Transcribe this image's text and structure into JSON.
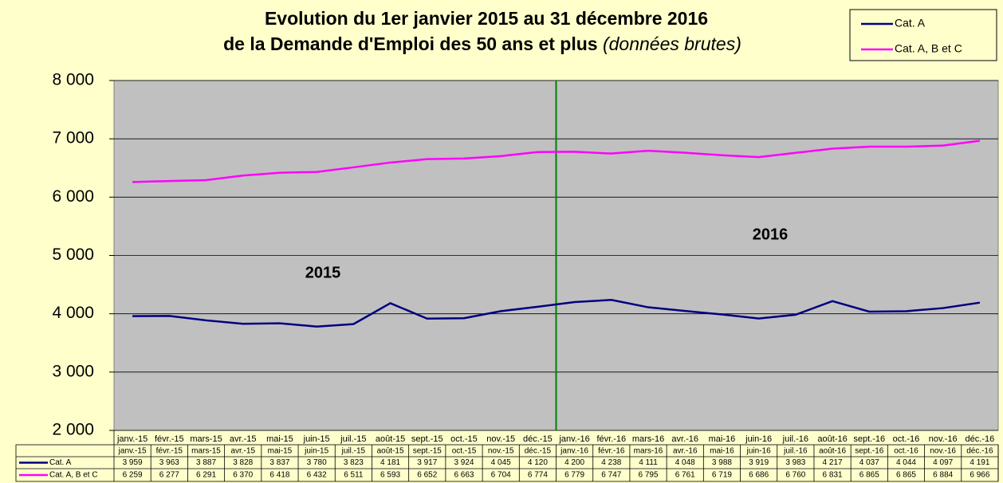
{
  "chart_data": {
    "type": "line",
    "title": [
      "Evolution  du 1er janvier 2015 au 31 décembre 2016",
      "de la Demande d'Emploi des 50 ans et plus"
    ],
    "subtitle": "(données brutes)",
    "annotations": [
      "2015",
      "2016"
    ],
    "categories": [
      "janv.-15",
      "févr.-15",
      "mars-15",
      "avr.-15",
      "mai-15",
      "juin-15",
      "juil.-15",
      "août-15",
      "sept.-15",
      "oct.-15",
      "nov.-15",
      "déc.-15",
      "janv.-16",
      "févr.-16",
      "mars-16",
      "avr.-16",
      "mai-16",
      "juin-16",
      "juil.-16",
      "août-16",
      "sept.-16",
      "oct.-16",
      "nov.-16",
      "déc.-16"
    ],
    "series": [
      {
        "name": "Cat. A",
        "color": "#000080",
        "values": [
          3959,
          3963,
          3887,
          3828,
          3837,
          3780,
          3823,
          4181,
          3917,
          3924,
          4045,
          4120,
          4200,
          4238,
          4111,
          4048,
          3988,
          3919,
          3983,
          4217,
          4037,
          4044,
          4097,
          4191
        ],
        "value_labels": [
          "3 959",
          "3 963",
          "3 887",
          "3 828",
          "3 837",
          "3 780",
          "3 823",
          "4 181",
          "3 917",
          "3 924",
          "4 045",
          "4 120",
          "4 200",
          "4 238",
          "4 111",
          "4 048",
          "3 988",
          "3 919",
          "3 983",
          "4 217",
          "4 037",
          "4 044",
          "4 097",
          "4 191"
        ]
      },
      {
        "name": "Cat. A, B et C",
        "color": "#ff00ff",
        "values": [
          6259,
          6277,
          6291,
          6370,
          6418,
          6432,
          6511,
          6593,
          6652,
          6663,
          6704,
          6774,
          6779,
          6747,
          6795,
          6761,
          6719,
          6686,
          6760,
          6831,
          6865,
          6865,
          6884,
          6966
        ],
        "value_labels": [
          "6 259",
          "6 277",
          "6 291",
          "6 370",
          "6 418",
          "6 432",
          "6 511",
          "6 593",
          "6 652",
          "6 663",
          "6 704",
          "6 774",
          "6 779",
          "6 747",
          "6 795",
          "6 761",
          "6 719",
          "6 686",
          "6 760",
          "6 831",
          "6 865",
          "6 865",
          "6 884",
          "6 966"
        ]
      }
    ],
    "ylim": [
      2000,
      8000
    ],
    "yticks": [
      {
        "value": 2000,
        "label": "2 000"
      },
      {
        "value": 3000,
        "label": "3 000"
      },
      {
        "value": 4000,
        "label": "4 000"
      },
      {
        "value": 5000,
        "label": "5 000"
      },
      {
        "value": 6000,
        "label": "6 000"
      },
      {
        "value": 7000,
        "label": "7 000"
      },
      {
        "value": 8000,
        "label": "8 000"
      }
    ],
    "grid": true,
    "legend": "top-right"
  }
}
